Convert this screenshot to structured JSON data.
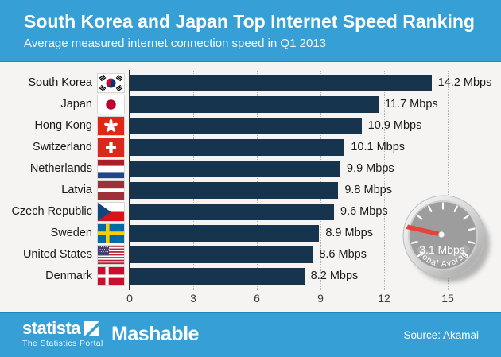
{
  "header": {
    "title": "South Korea and Japan Top Internet Speed Ranking",
    "subtitle": "Average measured internet connection speed in Q1 2013"
  },
  "chart_data": {
    "type": "bar",
    "orientation": "horizontal",
    "title": "South Korea and Japan Top Internet Speed Ranking",
    "subtitle": "Average measured internet connection speed in Q1 2013",
    "unit": "Mbps",
    "categories": [
      "South Korea",
      "Japan",
      "Hong Kong",
      "Switzerland",
      "Netherlands",
      "Latvia",
      "Czech Republic",
      "Sweden",
      "United States",
      "Denmark"
    ],
    "values": [
      14.2,
      11.7,
      10.9,
      10.1,
      9.9,
      9.8,
      9.6,
      8.9,
      8.6,
      8.2
    ],
    "value_suffix": " Mbps",
    "flags": [
      "south-korea",
      "japan",
      "hong-kong",
      "switzerland",
      "netherlands",
      "latvia",
      "czech-republic",
      "sweden",
      "united-states",
      "denmark"
    ],
    "xlim": [
      0,
      15
    ],
    "x_ticks": [
      0,
      3,
      6,
      9,
      12,
      15
    ],
    "grid": "dotted-vertical",
    "legend": "none"
  },
  "gauge": {
    "value_label": "3.1 Mbps",
    "caption": "Global Average"
  },
  "footer": {
    "statista_word": "statista",
    "statista_tagline": "The Statistics Portal",
    "partner": "Mashable",
    "source": "Source: Akamai"
  },
  "colors": {
    "banner": "#36a0d6",
    "bar": "#17344e",
    "chart_bg": "#f5f4f2",
    "grid": "#b4b2af",
    "needle": "#e8433a"
  }
}
